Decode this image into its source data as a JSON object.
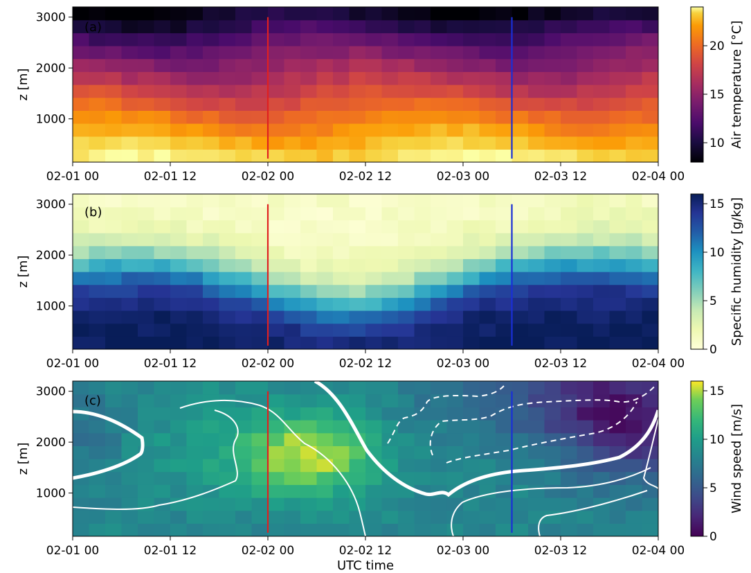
{
  "colors": {
    "marker_red": "#e02020",
    "marker_blue": "#1a2fd6",
    "contour": "#ffffff"
  },
  "chart_data": [
    {
      "type": "heatmap",
      "panel_label": "(a)",
      "title": "",
      "xlabel": "",
      "ylabel": "z [m]",
      "x_ticks": [
        "02-01 00",
        "02-01 12",
        "02-02 00",
        "02-02 12",
        "02-03 00",
        "02-03 12",
        "02-04 00"
      ],
      "y_ticks": [
        "1000",
        "2000",
        "3000"
      ],
      "xlim_hours": [
        0,
        72
      ],
      "ylim": [
        150,
        3200
      ],
      "colormap": "inferno",
      "colorbar": {
        "label": "Air temperature [°C]",
        "ticks": [
          "10",
          "15",
          "20"
        ],
        "range": [
          8,
          24
        ]
      },
      "vertical_markers": [
        {
          "time": "02-02 00",
          "color": "red"
        },
        {
          "time": "02-03 06",
          "color": "blue"
        }
      ],
      "profile_heights_m": [
        250,
        500,
        750,
        1000,
        1250,
        1500,
        1750,
        2000,
        2250,
        2500,
        2750,
        3000
      ],
      "typical_profile": [
        23.5,
        21.5,
        20.0,
        18.5,
        17.0,
        16.0,
        15.0,
        14.0,
        13.0,
        12.0,
        10.5,
        9.0
      ]
    },
    {
      "type": "heatmap",
      "panel_label": "(b)",
      "title": "",
      "xlabel": "",
      "ylabel": "z [m]",
      "x_ticks": [
        "02-01 00",
        "02-01 12",
        "02-02 00",
        "02-02 12",
        "02-03 00",
        "02-03 12",
        "02-04 00"
      ],
      "y_ticks": [
        "1000",
        "2000",
        "3000"
      ],
      "xlim_hours": [
        0,
        72
      ],
      "ylim": [
        150,
        3200
      ],
      "colormap": "YlGnBu",
      "colorbar": {
        "label": "Specific humidity [g/kg]",
        "ticks": [
          "0",
          "5",
          "10",
          "15"
        ],
        "range": [
          0,
          16
        ]
      },
      "vertical_markers": [
        {
          "time": "02-02 00",
          "color": "red"
        },
        {
          "time": "02-03 06",
          "color": "blue"
        }
      ],
      "profile_heights_m": [
        250,
        500,
        750,
        1000,
        1250,
        1500,
        1750,
        2000,
        2250,
        2500,
        2750,
        3000
      ],
      "typical_profile": [
        15.0,
        13.5,
        12.5,
        11.0,
        9.5,
        8.0,
        6.5,
        5.5,
        4.0,
        3.0,
        2.0,
        1.0
      ]
    },
    {
      "type": "heatmap",
      "panel_label": "(c)",
      "title": "",
      "xlabel": "UTC time",
      "ylabel": "z [m]",
      "x_ticks": [
        "02-01 00",
        "02-01 12",
        "02-02 00",
        "02-02 12",
        "02-03 00",
        "02-03 12",
        "02-04 00"
      ],
      "y_ticks": [
        "1000",
        "2000",
        "3000"
      ],
      "xlim_hours": [
        0,
        72
      ],
      "ylim": [
        150,
        3200
      ],
      "colormap": "viridis",
      "colorbar": {
        "label": "Wind speed [m/s]",
        "ticks": [
          "0",
          "5",
          "10",
          "15"
        ],
        "range": [
          0,
          16
        ]
      },
      "vertical_markers": [
        {
          "time": "02-02 00",
          "color": "red"
        },
        {
          "time": "02-03 06",
          "color": "blue"
        }
      ],
      "max_speed_region": {
        "time": "02-02 05",
        "height_m": 1500,
        "speed": 15
      },
      "low_speed_region": {
        "time": "02-03 20",
        "height_m": 2000,
        "speed": 3
      },
      "contours": "white lines; thick line marks a reference isotach, dashed lines lower-speed isotachs"
    }
  ]
}
